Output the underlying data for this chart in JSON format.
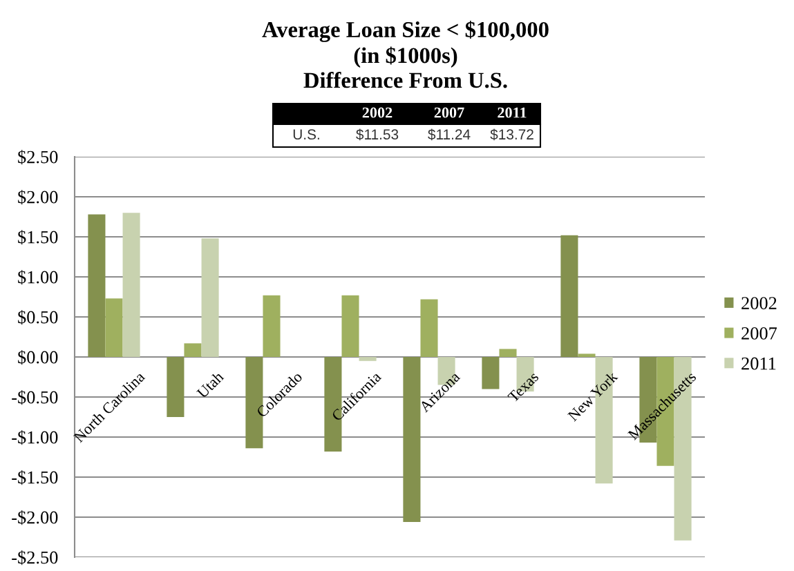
{
  "chart_data": {
    "type": "bar",
    "title": "Average Loan Size < $100,000\n(in $1000s)\nDifference From U.S.",
    "categories": [
      "North Carolina",
      "Utah",
      "Colorado",
      "California",
      "Arizona",
      "Texas",
      "New York",
      "Massachusetts"
    ],
    "series": [
      {
        "name": "2002",
        "color": "#84914e",
        "values": [
          1.78,
          -0.75,
          -1.14,
          -1.18,
          -2.06,
          -0.4,
          1.52,
          -1.07
        ]
      },
      {
        "name": "2007",
        "color": "#9fb05f",
        "values": [
          0.73,
          0.17,
          0.77,
          0.77,
          0.72,
          0.1,
          0.04,
          -1.36
        ]
      },
      {
        "name": "2011",
        "color": "#c8d2af",
        "values": [
          1.8,
          1.48,
          null,
          -0.05,
          -0.35,
          -0.43,
          -1.58,
          -2.29
        ]
      }
    ],
    "ylim": [
      -2.5,
      2.5
    ],
    "yticks": [
      {
        "value": 2.5,
        "label": "$2.50"
      },
      {
        "value": 2.0,
        "label": "$2.00"
      },
      {
        "value": 1.5,
        "label": "$1.50"
      },
      {
        "value": 1.0,
        "label": "$1.00"
      },
      {
        "value": 0.5,
        "label": "$0.50"
      },
      {
        "value": 0,
        "label": "$0.00"
      },
      {
        "value": -0.5,
        "label": "-$0.50"
      },
      {
        "value": -1.0,
        "label": "-$1.00"
      },
      {
        "value": -1.5,
        "label": "-$1.50"
      },
      {
        "value": -2.0,
        "label": "-$2.00"
      },
      {
        "value": -2.5,
        "label": "-$2.50"
      }
    ],
    "grid": "y",
    "legend": "right",
    "annotations": [
      "U.S.",
      "$11.53",
      "$11.24",
      "$13.72"
    ]
  }
}
